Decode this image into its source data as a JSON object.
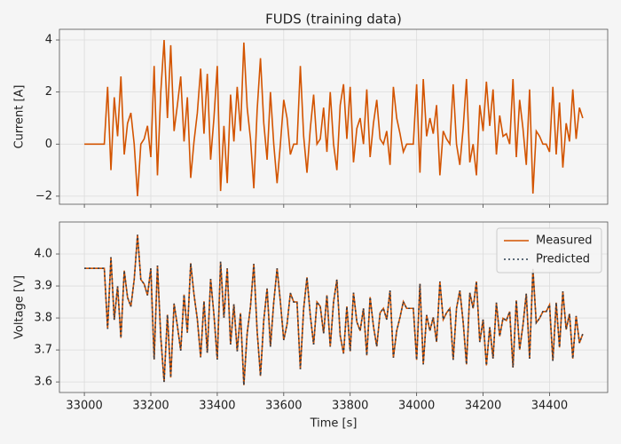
{
  "chart_data": [
    {
      "type": "line",
      "title": "FUDS (training data)",
      "ylabel": "Current [A]",
      "color": "#d35400",
      "x": [
        33000,
        33010,
        33020,
        33030,
        33040,
        33050,
        33060,
        33070,
        33080,
        33090,
        33100,
        33110,
        33120,
        33130,
        33140,
        33150,
        33160,
        33170,
        33180,
        33190,
        33200,
        33210,
        33220,
        33230,
        33240,
        33250,
        33260,
        33270,
        33280,
        33290,
        33300,
        33310,
        33320,
        33330,
        33340,
        33350,
        33360,
        33370,
        33380,
        33390,
        33400,
        33410,
        33420,
        33430,
        33440,
        33450,
        33460,
        33470,
        33480,
        33490,
        33500,
        33510,
        33520,
        33530,
        33540,
        33550,
        33560,
        33570,
        33580,
        33590,
        33600,
        33610,
        33620,
        33630,
        33640,
        33650,
        33660,
        33670,
        33680,
        33690,
        33700,
        33710,
        33720,
        33730,
        33740,
        33750,
        33760,
        33770,
        33780,
        33790,
        33800,
        33810,
        33820,
        33830,
        33840,
        33850,
        33860,
        33870,
        33880,
        33890,
        33900,
        33910,
        33920,
        33930,
        33940,
        33950,
        33960,
        33970,
        33980,
        33990,
        34000,
        34010,
        34020,
        34030,
        34040,
        34050,
        34060,
        34070,
        34080,
        34090,
        34100,
        34110,
        34120,
        34130,
        34140,
        34150,
        34160,
        34170,
        34180,
        34190,
        34200,
        34210,
        34220,
        34230,
        34240,
        34250,
        34260,
        34270,
        34280,
        34290,
        34300,
        34310,
        34320,
        34330,
        34340,
        34350,
        34360,
        34370,
        34380,
        34390,
        34400,
        34410,
        34420,
        34430,
        34440,
        34450,
        34460,
        34470,
        34480,
        34490,
        34500
      ],
      "values": [
        0,
        0,
        0,
        0,
        0,
        0,
        0,
        2.2,
        -1.0,
        1.8,
        0.3,
        2.6,
        -0.4,
        0.8,
        1.2,
        0,
        -2.0,
        0,
        0.2,
        0.7,
        -0.5,
        3.0,
        -1.2,
        2.0,
        4.0,
        1.0,
        3.8,
        0.5,
        1.5,
        2.6,
        0.1,
        1.8,
        -1.3,
        0.1,
        1.2,
        2.9,
        0.4,
        2.7,
        -0.6,
        1.0,
        3.0,
        -1.8,
        0.7,
        -1.5,
        1.9,
        0.1,
        2.2,
        0.5,
        3.9,
        1.4,
        0.2,
        -1.7,
        1.3,
        3.3,
        0.8,
        -0.6,
        2.0,
        0,
        -1.5,
        0,
        1.7,
        1.0,
        -0.4,
        0,
        0,
        3.0,
        0.3,
        -1.1,
        0.6,
        1.9,
        0,
        0.2,
        1.4,
        -0.3,
        2.0,
        0,
        -1.0,
        1.5,
        2.3,
        0.2,
        2.2,
        -0.7,
        0.6,
        1.0,
        0,
        2.1,
        -0.5,
        0.8,
        1.7,
        0.2,
        0,
        0.5,
        -0.8,
        2.2,
        1.0,
        0.4,
        -0.3,
        0,
        0,
        0,
        2.3,
        -1.1,
        2.5,
        0.3,
        1.0,
        0.4,
        1.5,
        -1.2,
        0.5,
        0.2,
        0,
        2.3,
        0,
        -0.8,
        0.6,
        2.5,
        -0.7,
        0,
        -1.2,
        1.5,
        0.5,
        2.4,
        0.7,
        2.1,
        -0.4,
        1.1,
        0.3,
        0.4,
        0,
        2.5,
        -0.5,
        1.7,
        0.6,
        -0.8,
        2.1,
        -1.9,
        0.5,
        0.3,
        0,
        0,
        -0.3,
        2.2,
        -0.4,
        1.6,
        -0.9,
        0.8,
        0.1,
        2.1,
        0.2,
        1.4,
        1.0
      ],
      "xlim": [
        32925,
        34575
      ],
      "xticks": [
        33000,
        33200,
        33400,
        33600,
        33800,
        34000,
        34200,
        34400
      ],
      "ylim": [
        -2.31,
        4.41
      ],
      "yticks": [
        {
          "value": -2,
          "label": "−2"
        },
        0,
        2,
        4
      ],
      "grid": true
    },
    {
      "type": "line",
      "xlabel": "Time [s]",
      "ylabel": "Voltage [V]",
      "legend": "upper right",
      "x": [
        33000,
        33010,
        33020,
        33030,
        33040,
        33050,
        33060,
        33070,
        33080,
        33090,
        33100,
        33110,
        33120,
        33130,
        33140,
        33150,
        33160,
        33170,
        33180,
        33190,
        33200,
        33210,
        33220,
        33230,
        33240,
        33250,
        33260,
        33270,
        33280,
        33290,
        33300,
        33310,
        33320,
        33330,
        33340,
        33350,
        33360,
        33370,
        33380,
        33390,
        33400,
        33410,
        33420,
        33430,
        33440,
        33450,
        33460,
        33470,
        33480,
        33490,
        33500,
        33510,
        33520,
        33530,
        33540,
        33550,
        33560,
        33570,
        33580,
        33590,
        33600,
        33610,
        33620,
        33630,
        33640,
        33650,
        33660,
        33670,
        33680,
        33690,
        33700,
        33710,
        33720,
        33730,
        33740,
        33750,
        33760,
        33770,
        33780,
        33790,
        33800,
        33810,
        33820,
        33830,
        33840,
        33850,
        33860,
        33870,
        33880,
        33890,
        33900,
        33910,
        33920,
        33930,
        33940,
        33950,
        33960,
        33970,
        33980,
        33990,
        34000,
        34010,
        34020,
        34030,
        34040,
        34050,
        34060,
        34070,
        34080,
        34090,
        34100,
        34110,
        34120,
        34130,
        34140,
        34150,
        34160,
        34170,
        34180,
        34190,
        34200,
        34210,
        34220,
        34230,
        34240,
        34250,
        34260,
        34270,
        34280,
        34290,
        34300,
        34310,
        34320,
        34330,
        34340,
        34350,
        34360,
        34370,
        34380,
        34390,
        34400,
        34410,
        34420,
        34430,
        34440,
        34450,
        34460,
        34470,
        34480,
        34490,
        34500
      ],
      "series": [
        {
          "name": "Measured",
          "color": "#d35400",
          "dash": "solid",
          "values": [
            3.955,
            3.955,
            3.955,
            3.955,
            3.955,
            3.955,
            3.955,
            3.766,
            3.99,
            3.794,
            3.899,
            3.738,
            3.948,
            3.864,
            3.836,
            3.92,
            4.06,
            3.92,
            3.906,
            3.871,
            3.955,
            3.67,
            3.964,
            3.74,
            3.6,
            3.81,
            3.614,
            3.845,
            3.775,
            3.698,
            3.873,
            3.754,
            3.971,
            3.873,
            3.796,
            3.677,
            3.852,
            3.691,
            3.922,
            3.81,
            3.67,
            3.976,
            3.801,
            3.955,
            3.717,
            3.843,
            3.696,
            3.815,
            3.59,
            3.752,
            3.836,
            3.969,
            3.759,
            3.619,
            3.794,
            3.892,
            3.71,
            3.85,
            3.955,
            3.85,
            3.731,
            3.78,
            3.878,
            3.85,
            3.85,
            3.64,
            3.829,
            3.927,
            3.808,
            3.717,
            3.85,
            3.836,
            3.752,
            3.871,
            3.71,
            3.85,
            3.92,
            3.745,
            3.689,
            3.836,
            3.696,
            3.879,
            3.788,
            3.76,
            3.83,
            3.683,
            3.865,
            3.774,
            3.711,
            3.816,
            3.83,
            3.795,
            3.886,
            3.676,
            3.76,
            3.802,
            3.851,
            3.83,
            3.83,
            3.83,
            3.669,
            3.907,
            3.655,
            3.809,
            3.76,
            3.802,
            3.725,
            3.914,
            3.795,
            3.816,
            3.83,
            3.669,
            3.83,
            3.886,
            3.788,
            3.655,
            3.879,
            3.83,
            3.914,
            3.725,
            3.795,
            3.652,
            3.771,
            3.673,
            3.848,
            3.743,
            3.799,
            3.792,
            3.82,
            3.645,
            3.855,
            3.701,
            3.778,
            3.876,
            3.673,
            3.953,
            3.785,
            3.799,
            3.82,
            3.82,
            3.841,
            3.666,
            3.848,
            3.708,
            3.883,
            3.764,
            3.813,
            3.673,
            3.806,
            3.722,
            3.75
          ]
        },
        {
          "name": "Predicted",
          "color": "#2c3e50",
          "dash": "dotted",
          "values": [
            3.955,
            3.955,
            3.955,
            3.955,
            3.955,
            3.955,
            3.955,
            3.766,
            3.99,
            3.794,
            3.899,
            3.738,
            3.948,
            3.864,
            3.836,
            3.92,
            4.06,
            3.92,
            3.906,
            3.871,
            3.955,
            3.67,
            3.964,
            3.74,
            3.6,
            3.81,
            3.614,
            3.845,
            3.775,
            3.698,
            3.873,
            3.754,
            3.971,
            3.873,
            3.796,
            3.677,
            3.852,
            3.691,
            3.922,
            3.81,
            3.67,
            3.976,
            3.801,
            3.955,
            3.717,
            3.843,
            3.696,
            3.815,
            3.59,
            3.752,
            3.836,
            3.969,
            3.759,
            3.619,
            3.794,
            3.892,
            3.71,
            3.85,
            3.955,
            3.85,
            3.731,
            3.78,
            3.878,
            3.85,
            3.85,
            3.64,
            3.829,
            3.927,
            3.808,
            3.717,
            3.85,
            3.836,
            3.752,
            3.871,
            3.71,
            3.85,
            3.92,
            3.745,
            3.689,
            3.836,
            3.696,
            3.879,
            3.788,
            3.76,
            3.83,
            3.683,
            3.865,
            3.774,
            3.711,
            3.816,
            3.83,
            3.795,
            3.886,
            3.676,
            3.76,
            3.802,
            3.851,
            3.83,
            3.83,
            3.83,
            3.669,
            3.907,
            3.655,
            3.809,
            3.76,
            3.802,
            3.725,
            3.914,
            3.795,
            3.816,
            3.83,
            3.669,
            3.83,
            3.886,
            3.788,
            3.655,
            3.879,
            3.83,
            3.914,
            3.725,
            3.795,
            3.652,
            3.771,
            3.673,
            3.848,
            3.743,
            3.799,
            3.792,
            3.82,
            3.645,
            3.855,
            3.701,
            3.778,
            3.876,
            3.673,
            3.953,
            3.785,
            3.799,
            3.82,
            3.82,
            3.841,
            3.666,
            3.848,
            3.708,
            3.883,
            3.764,
            3.813,
            3.673,
            3.806,
            3.722,
            3.75
          ]
        }
      ],
      "xlim": [
        32925,
        34575
      ],
      "xticks": [
        33000,
        33200,
        33400,
        33600,
        33800,
        34000,
        34200,
        34400
      ],
      "ylim": [
        3.567,
        4.1
      ],
      "yticks": [
        3.6,
        3.7,
        3.8,
        3.9,
        {
          "value": 4,
          "label": "4.0"
        }
      ],
      "grid": true
    }
  ]
}
